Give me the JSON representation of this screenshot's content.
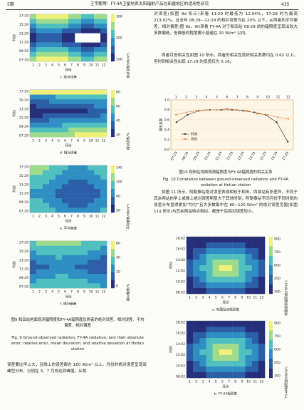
{
  "header": {
    "left": "5期",
    "center": "王宇鹏等：FY-4A卫星地表太阳辐射产品在新疆地区的适用性研究",
    "right": "435"
  },
  "figure9": {
    "y_label": "时刻",
    "x_label": "月份",
    "y_ticks": [
      "17:29",
      "15:29",
      "13:29",
      "11:29",
      "09:29",
      "07:29"
    ],
    "x_ticks": [
      "1",
      "2",
      "3",
      "4",
      "5",
      "6",
      "7",
      "8",
      "9",
      "10",
      "11",
      "12"
    ],
    "panels": [
      {
        "caption": "c. 绝对误差",
        "colorbar_label": "绝对误差/(W/m²)",
        "colorbar_ticks": [
          "300",
          "200",
          "100"
        ]
      },
      {
        "caption": "d. 相对误差",
        "colorbar_label": "相对误差/%",
        "colorbar_ticks": [
          "80",
          "60",
          "40",
          "20"
        ]
      },
      {
        "caption": "e. 平均偏差",
        "colorbar_label": "平均偏差/(W/m²)",
        "colorbar_ticks": [
          "140",
          "100",
          "60",
          "20"
        ]
      },
      {
        "caption": "f. 相对偏差",
        "colorbar_label": "相对偏差/%",
        "colorbar_ticks": [
          "60",
          "40",
          "20",
          "0"
        ]
      }
    ],
    "caption_cn": "图9  和田站地面观测辐照度和FY-4A辐照度及两者的绝对误差、相对误差、平均偏差、相对偏差",
    "caption_en": "Fig. 9  Ground-observed radiation, FY-4A radiation, and their absolute error, relative error, mean deviation, and relative deviation at Hetian station"
  },
  "text_left": "误差要比早上大，且晚上的误差都在 160 W/m² 以上。月份的绝对误差呈现双峰型分布，分别在 3、7 月份达到峰值。从相",
  "text_right_1": "对误差(如图 9d 所示)来看 11:29 时最低为 12.94%，17:29 时为最高 213.02%，且全年 08:29—12:29 的相对误差均在 20% 以下。从两者的平均偏差、相对偏差(图 9e、9f)来看 FY-4A 对于和田站 08:29 前的辐照度呈现出较大多数偏低，但偏低的程度要小普遍在 20 W/m² 以内。",
  "text_right_2": "两者月份相关性如图 10 所示，两者的相关性良好相关系数均在 0.62 以上。但时刻相关性出现 17:29 的低值仅为 0.16。",
  "figure10": {
    "type": "line",
    "y_label": "相关系数",
    "ylim": [
      0,
      1
    ],
    "yticks": [
      {
        "value": 0,
        "label": "0.0"
      },
      {
        "value": 0.2,
        "label": "0.2"
      },
      {
        "value": 0.4,
        "label": "0.4"
      },
      {
        "value": 0.6,
        "label": "0.6"
      },
      {
        "value": 0.8,
        "label": "0.8"
      },
      {
        "value": 1,
        "label": "1.0"
      }
    ],
    "series": [
      {
        "name": "时间",
        "color": "#222222",
        "categories": [
          "07:29",
          "08:29",
          "09:29",
          "10:29",
          "11:29",
          "12:29",
          "13:29",
          "14:29",
          "15:29",
          "16:29",
          "17:29"
        ],
        "values": [
          0.55,
          0.7,
          0.78,
          0.8,
          0.8,
          0.8,
          0.78,
          0.75,
          0.7,
          0.55,
          0.16
        ]
      },
      {
        "name": "月份",
        "color": "#e8833a",
        "categories": [
          "1",
          "2",
          "3",
          "4",
          "5",
          "6",
          "7",
          "8",
          "9",
          "10",
          "11",
          "12"
        ],
        "values": [
          0.7,
          0.75,
          0.78,
          0.8,
          0.8,
          0.82,
          0.8,
          0.78,
          0.72,
          0.7,
          0.65,
          0.62
        ]
      }
    ],
    "caption_cn": "图10  和田站地面观测辐照度与FY-4A辐照度的相关关系",
    "caption_en": "Fig. 10  Correlation between ground-observed radiation and FY-4A radiation at Hetian station"
  },
  "text_right_3": "如图 11 所示，阿勒泰站绝对误差表现相较于和田，西部站有所差异，不同于其余两站的早上或晚上绝对误差明显大于其他时刻，阿勒泰站不同月份不同时刻的误差分布显得更加“均匀”且大多数集中在 80~120 W/m² 的绝对误差范围(如图 11d 所示)与其余两站特点相似，都是午后相对误差较小。",
  "figure11": {
    "y_label": "时刻",
    "x_label": "月份",
    "y_ticks": [
      "18:02",
      "16:02",
      "14:02",
      "12:02",
      "10:02",
      "08:02"
    ],
    "x_ticks": [
      "1",
      "2",
      "3",
      "4",
      "5",
      "6",
      "7",
      "8",
      "9",
      "10",
      "11",
      "12"
    ],
    "panels": [
      {
        "caption": "a. 地面站点辐照度",
        "side_label": "地面观测辐照度/(W/m²)",
        "colorbar_ticks": [
          "900",
          "750",
          "600",
          "450",
          "300"
        ]
      },
      {
        "caption": "b. FY-4A辐照度",
        "side_label": "FY-4A辐照度/(W/m²)",
        "colorbar_ticks": [
          "900",
          "750",
          "600",
          "450",
          "300"
        ]
      }
    ]
  }
}
